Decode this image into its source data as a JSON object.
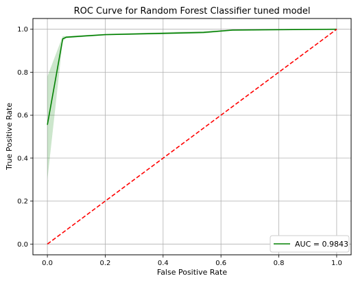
{
  "chart_data": {
    "type": "line",
    "title": "ROC Curve for Random Forest Classifier tuned model",
    "xlabel": "False Positive Rate",
    "ylabel": "True Positive Rate",
    "xlim": [
      -0.05,
      1.05
    ],
    "ylim": [
      -0.05,
      1.05
    ],
    "x_ticks": [
      0.0,
      0.2,
      0.4,
      0.6,
      0.8,
      1.0
    ],
    "y_ticks": [
      0.0,
      0.2,
      0.4,
      0.6,
      0.8,
      1.0
    ],
    "x_tick_labels": [
      "0.0",
      "0.2",
      "0.4",
      "0.6",
      "0.8",
      "1.0"
    ],
    "y_tick_labels": [
      "0.0",
      "0.2",
      "0.4",
      "0.6",
      "0.8",
      "1.0"
    ],
    "grid": true,
    "legend_position": "lower-right",
    "series": [
      {
        "name": "AUC = 0.9843",
        "color": "#008000",
        "style": "solid",
        "x": [
          0.0,
          0.053,
          0.065,
          0.2,
          0.54,
          0.64,
          1.0
        ],
        "y": [
          0.555,
          0.955,
          0.963,
          0.975,
          0.985,
          0.996,
          1.0
        ],
        "ci_lower": [
          0.3,
          0.945,
          0.958,
          0.972,
          0.98,
          0.994,
          1.0
        ],
        "ci_upper": [
          0.78,
          0.968,
          0.968,
          0.978,
          0.992,
          0.998,
          1.0
        ],
        "ci_color": "#008000"
      },
      {
        "color": "#ff0000",
        "style": "dashed",
        "x": [
          0.0,
          1.0
        ],
        "y": [
          0.0,
          1.0
        ]
      }
    ]
  }
}
